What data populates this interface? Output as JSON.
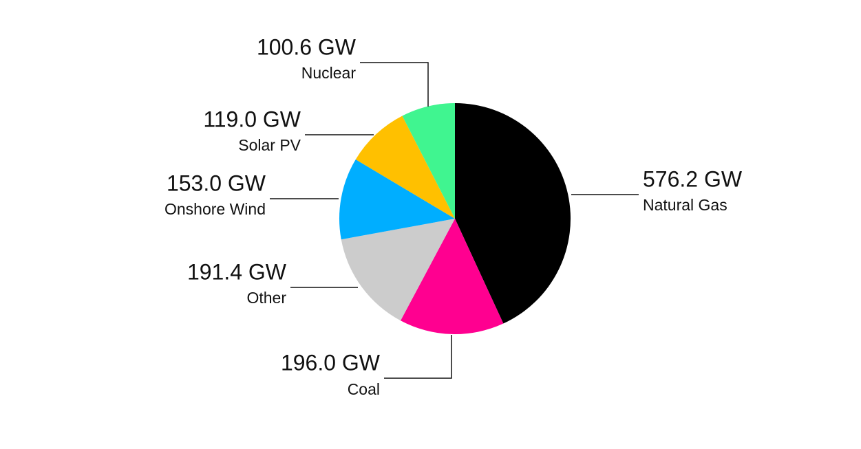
{
  "chart_data": {
    "type": "pie",
    "categories": [
      "Natural Gas",
      "Coal",
      "Other",
      "Onshore Wind",
      "Solar PV",
      "Nuclear"
    ],
    "values": [
      576.2,
      196.0,
      191.4,
      153.0,
      119.0,
      100.6
    ],
    "value_labels": [
      "576.2 GW",
      "196.0 GW",
      "191.4 GW",
      "153.0 GW",
      "119.0 GW",
      "100.6 GW"
    ],
    "colors": [
      "#000000",
      "#ff0090",
      "#cccccc",
      "#00aeff",
      "#ffc000",
      "#40f590"
    ]
  }
}
